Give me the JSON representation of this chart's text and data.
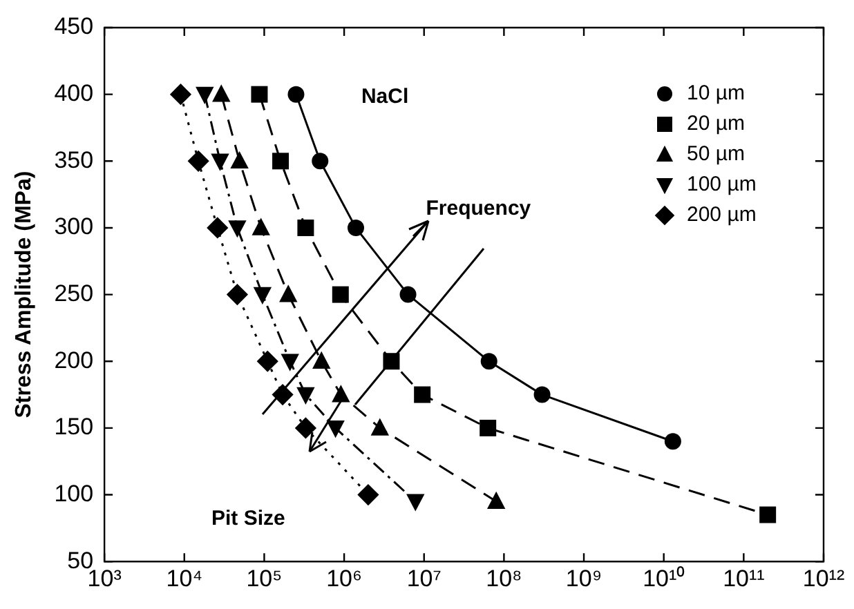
{
  "chart_data": {
    "type": "line",
    "ylabel": "Stress Amplitude (MPa)",
    "xlim": [
      1000,
      1000000000000
    ],
    "ylim": [
      50,
      450
    ],
    "xticks": [
      {
        "value": 1000,
        "label": "10³"
      },
      {
        "value": 10000,
        "label": "10⁴"
      },
      {
        "value": 100000,
        "label": "10⁵"
      },
      {
        "value": 1000000,
        "label": "10⁶"
      },
      {
        "value": 10000000,
        "label": "10⁷"
      },
      {
        "value": 100000000,
        "label": "10⁸"
      },
      {
        "value": 1000000000,
        "label": "10⁹"
      },
      {
        "value": 10000000000,
        "label": "10¹⁰"
      },
      {
        "value": 100000000000,
        "label": "10¹¹"
      },
      {
        "value": 1000000000000,
        "label": "10¹²"
      }
    ],
    "yticks": [
      50,
      100,
      150,
      200,
      250,
      300,
      350,
      400,
      450
    ],
    "log": "x",
    "grid": false,
    "legend": "top right",
    "annotations": [
      "NaCl",
      "Frequency",
      "Pit Size"
    ],
    "series": [
      {
        "name": "10 µm",
        "color": "#000000",
        "marker": "circle",
        "line_style": "solid",
        "x": [
          250000,
          500000,
          1400000,
          6300000,
          65000000,
          300000000,
          13000000000
        ],
        "values": [
          400,
          350,
          300,
          250,
          200,
          175,
          140
        ]
      },
      {
        "name": "20 µm",
        "color": "#000000",
        "marker": "square",
        "line_style": "dashed",
        "x": [
          87000,
          160000,
          330000,
          900000,
          3900000,
          9500000,
          63000000,
          200000000000
        ],
        "values": [
          400,
          350,
          300,
          250,
          200,
          175,
          150,
          85
        ]
      },
      {
        "name": "50 µm",
        "color": "#000000",
        "marker": "triangle",
        "line_style": "dashed",
        "x": [
          29000,
          49000,
          91000,
          200000,
          520000,
          910000,
          2800000,
          80000000
        ],
        "values": [
          400,
          350,
          300,
          250,
          200,
          175,
          150,
          95
        ]
      },
      {
        "name": "100 µm",
        "color": "#000000",
        "marker": "triangle-down",
        "line_style": "dashdot",
        "x": [
          18000,
          28000,
          46000,
          95000,
          210000,
          330000,
          780000,
          7800000
        ],
        "values": [
          400,
          350,
          300,
          250,
          200,
          175,
          150,
          95
        ]
      },
      {
        "name": "200 µm",
        "color": "#000000",
        "marker": "diamond",
        "line_style": "dotted",
        "x": [
          9000,
          15000,
          26000,
          46000,
          110000,
          170000,
          330000,
          2000000
        ],
        "values": [
          400,
          350,
          300,
          250,
          200,
          175,
          150,
          100
        ]
      }
    ]
  }
}
